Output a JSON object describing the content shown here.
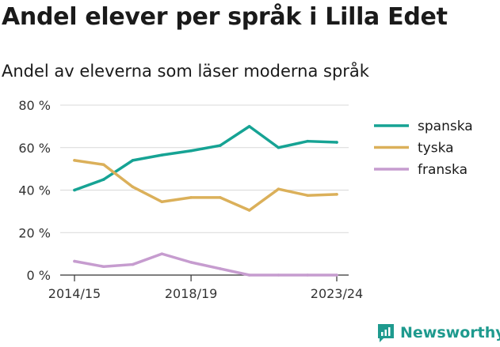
{
  "title": "Andel elever per språk i Lilla Edet",
  "subtitle": "Andel av eleverna som läser moderna språk",
  "brand": {
    "name": "Newsworthy",
    "logo_icon": "newsworthy-logo-icon"
  },
  "chart_data": {
    "type": "line",
    "title": "Andel elever per språk i Lilla Edet",
    "subtitle": "Andel av eleverna som läser moderna språk",
    "xlabel": "",
    "ylabel": "",
    "x": [
      "2014/15",
      "2015/16",
      "2016/17",
      "2017/18",
      "2018/19",
      "2019/20",
      "2020/21",
      "2021/22",
      "2022/23",
      "2023/24"
    ],
    "x_tick_labels": [
      "2014/15",
      "2018/19",
      "2023/24"
    ],
    "y_tick_labels": [
      "0 %",
      "20 %",
      "40 %",
      "60 %",
      "80 %"
    ],
    "y_ticks": [
      0,
      20,
      40,
      60,
      80
    ],
    "ylim": [
      0,
      80
    ],
    "grid": true,
    "legend_position": "right",
    "series": [
      {
        "name": "spanska",
        "color": "#16a394",
        "values": [
          40,
          45,
          54,
          56.5,
          58.5,
          61,
          70,
          60,
          63,
          62.5
        ]
      },
      {
        "name": "tyska",
        "color": "#dbb05a",
        "values": [
          54,
          52,
          41.5,
          34.5,
          36.5,
          36.5,
          30.5,
          40.5,
          37.5,
          38
        ]
      },
      {
        "name": "franska",
        "color": "#c69ccf",
        "values": [
          6.5,
          4,
          5,
          10,
          6,
          3,
          0,
          0,
          0,
          0
        ]
      }
    ]
  }
}
